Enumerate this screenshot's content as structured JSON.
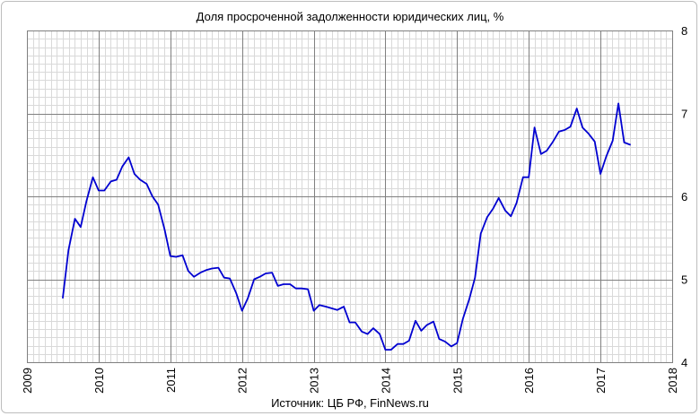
{
  "chart_data": {
    "type": "line",
    "title": "Доля просроченной задолженности юридических лиц, %",
    "source": "Источник: ЦБ РФ, FinNews.ru",
    "xlabel": "",
    "ylabel": "",
    "xlim": [
      2009,
      2018
    ],
    "ylim": [
      4,
      8
    ],
    "x_ticks": [
      "2009",
      "2010",
      "2011",
      "2012",
      "2013",
      "2014",
      "2015",
      "2016",
      "2017",
      "2018"
    ],
    "y_ticks": [
      "4",
      "5",
      "6",
      "7",
      "8"
    ],
    "grid": true,
    "legend": "none",
    "line_color": "#0000d0",
    "series": [
      {
        "x": [
          2009.5,
          2009.58,
          2009.67,
          2009.75,
          2009.83,
          2009.92,
          2010.0,
          2010.08,
          2010.17,
          2010.25,
          2010.33,
          2010.42,
          2010.5,
          2010.58,
          2010.67,
          2010.75,
          2010.83,
          2010.92,
          2011.0,
          2011.08,
          2011.17,
          2011.25,
          2011.33,
          2011.42,
          2011.5,
          2011.58,
          2011.67,
          2011.75,
          2011.83,
          2011.92,
          2012.0,
          2012.08,
          2012.17,
          2012.25,
          2012.33,
          2012.42,
          2012.5,
          2012.58,
          2012.67,
          2012.75,
          2012.83,
          2012.92,
          2013.0,
          2013.08,
          2013.17,
          2013.25,
          2013.33,
          2013.42,
          2013.5,
          2013.58,
          2013.67,
          2013.75,
          2013.83,
          2013.92,
          2014.0,
          2014.08,
          2014.17,
          2014.25,
          2014.33,
          2014.42,
          2014.5,
          2014.58,
          2014.67,
          2014.75,
          2014.83,
          2014.92,
          2015.0,
          2015.08,
          2015.17,
          2015.25,
          2015.33,
          2015.42,
          2015.5,
          2015.58,
          2015.67,
          2015.75,
          2015.83,
          2015.92,
          2016.0,
          2016.08,
          2016.17,
          2016.25,
          2016.33,
          2016.42,
          2016.5,
          2016.58,
          2016.67,
          2016.75,
          2016.83,
          2016.92,
          2017.0,
          2017.08,
          2017.17,
          2017.25,
          2017.33,
          2017.42
        ],
        "y": [
          4.77,
          5.35,
          5.73,
          5.63,
          5.94,
          6.23,
          6.07,
          6.07,
          6.18,
          6.2,
          6.36,
          6.47,
          6.27,
          6.2,
          6.15,
          6.0,
          5.9,
          5.6,
          5.28,
          5.27,
          5.29,
          5.1,
          5.03,
          5.08,
          5.11,
          5.13,
          5.14,
          5.02,
          5.01,
          4.83,
          4.62,
          4.77,
          5.0,
          5.03,
          5.07,
          5.08,
          4.92,
          4.94,
          4.94,
          4.89,
          4.89,
          4.88,
          4.62,
          4.69,
          4.67,
          4.65,
          4.63,
          4.67,
          4.48,
          4.48,
          4.37,
          4.34,
          4.41,
          4.34,
          4.15,
          4.15,
          4.22,
          4.22,
          4.26,
          4.5,
          4.38,
          4.45,
          4.49,
          4.28,
          4.25,
          4.19,
          4.23,
          4.52,
          4.76,
          5.02,
          5.55,
          5.75,
          5.85,
          5.98,
          5.83,
          5.76,
          5.92,
          6.23,
          6.23,
          6.83,
          6.51,
          6.55,
          6.65,
          6.78,
          6.8,
          6.84,
          7.06,
          6.83,
          6.76,
          6.66,
          6.27,
          6.48,
          6.67,
          7.12,
          6.65,
          6.62
        ]
      }
    ]
  }
}
